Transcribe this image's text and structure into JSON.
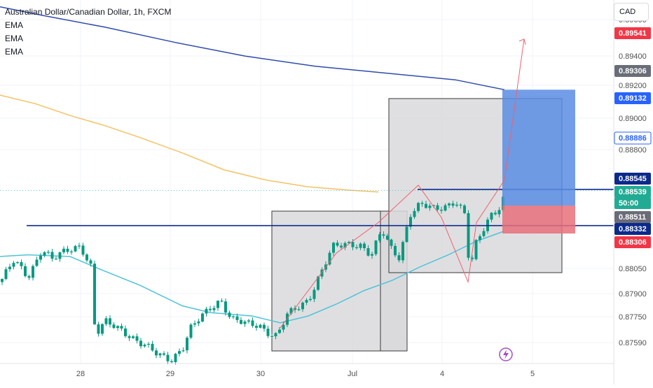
{
  "header": {
    "title": "Australian Dollar/Canadian Dollar, 1h, FXCM",
    "indicators": [
      "EMA",
      "EMA",
      "EMA"
    ]
  },
  "currency_button": "CAD",
  "colors": {
    "candle": "#089981",
    "background": "#ffffff",
    "ema_long": "#2f4bad",
    "ema_mid": "#f5c163",
    "ema_short": "#4fc3d8",
    "level_line": "#0c2a8c",
    "target_zone": "#5b8de3",
    "stop_zone": "#e8707a",
    "projection": "#f0616d",
    "box_fill": "#d9d9dc"
  },
  "chart_data": {
    "type": "candlestick",
    "symbol": "Australian Dollar/Canadian Dollar, 1h, FXCM",
    "x_tick_labels": [
      "28",
      "29",
      "30",
      "Jul",
      "4",
      "5"
    ],
    "y_tick_labels": [
      "0.89600",
      "0.89400",
      "0.89200",
      "0.89000",
      "0.88800",
      "0.88050",
      "0.87900",
      "0.87750",
      "0.87590"
    ],
    "ylim": [
      0.8752,
      0.8966
    ],
    "price_badges": [
      {
        "value": "0.89541",
        "kind": "red"
      },
      {
        "value": "0.89306",
        "kind": "gray"
      },
      {
        "value": "0.89132",
        "kind": "blue"
      },
      {
        "value": "0.88886",
        "kind": "outline-blue"
      },
      {
        "value": "0.88545",
        "kind": "navy"
      },
      {
        "value": "0.88539",
        "kind": "current"
      },
      {
        "value": "50:00",
        "kind": "countdown"
      },
      {
        "value": "0.88511",
        "kind": "gray"
      },
      {
        "value": "0.88332",
        "kind": "navy"
      },
      {
        "value": "0.88306",
        "kind": "red"
      }
    ],
    "horizontal_levels": [
      0.88545,
      0.88332
    ],
    "current_price": 0.88539,
    "position": {
      "entry": 0.8845,
      "target": 0.89132,
      "stop": 0.88306
    },
    "ema_long_points": [
      [
        0,
        0.8962
      ],
      [
        60,
        0.8957
      ],
      [
        150,
        0.895
      ],
      [
        250,
        0.8941
      ],
      [
        350,
        0.8933
      ],
      [
        450,
        0.8927
      ],
      [
        550,
        0.8923
      ],
      [
        650,
        0.8919
      ],
      [
        720,
        0.89132
      ]
    ],
    "ema_mid_points": [
      [
        0,
        0.891
      ],
      [
        50,
        0.8905
      ],
      [
        100,
        0.8898
      ],
      [
        150,
        0.8892
      ],
      [
        200,
        0.8885
      ],
      [
        260,
        0.8876
      ],
      [
        320,
        0.8866
      ],
      [
        380,
        0.886
      ],
      [
        440,
        0.8856
      ],
      [
        500,
        0.8854
      ],
      [
        540,
        0.8853
      ]
    ],
    "ema_short_points": [
      [
        0,
        0.8815
      ],
      [
        40,
        0.8816
      ],
      [
        100,
        0.8815
      ],
      [
        140,
        0.8808
      ],
      [
        200,
        0.8798
      ],
      [
        260,
        0.8786
      ],
      [
        300,
        0.8782
      ],
      [
        360,
        0.878
      ],
      [
        400,
        0.8776
      ],
      [
        440,
        0.878
      ],
      [
        480,
        0.8787
      ],
      [
        520,
        0.8795
      ],
      [
        560,
        0.8801
      ],
      [
        600,
        0.8809
      ],
      [
        640,
        0.8816
      ],
      [
        680,
        0.8824
      ],
      [
        720,
        0.883
      ]
    ],
    "projection_path": [
      [
        400,
        0.8773
      ],
      [
        480,
        0.8817
      ],
      [
        540,
        0.8835
      ],
      [
        597,
        0.8857
      ],
      [
        630,
        0.8838
      ],
      [
        668,
        0.88
      ],
      [
        680,
        0.8835
      ],
      [
        720,
        0.886
      ],
      [
        748,
        0.8943
      ]
    ]
  }
}
